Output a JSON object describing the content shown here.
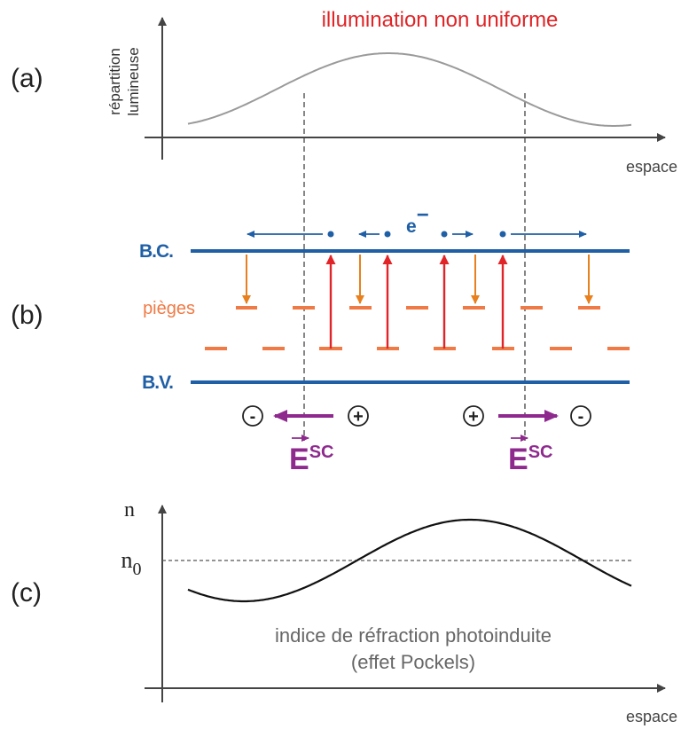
{
  "colors": {
    "axis": "#444444",
    "light_curve": "#9a9a9a",
    "band": "#1f5fa6",
    "trap": "#f07a45",
    "trap_arrow": "#e8801e",
    "excite_arrow": "#e02427",
    "field": "#8e2a8e",
    "title": "#e02427",
    "text": "#222222",
    "note": "#666666"
  },
  "panel_a": {
    "label": "(a)",
    "title": "illumination non uniforme",
    "ylabel_line1": "répartition",
    "ylabel_line2": "lumineuse",
    "xlabel": "espace"
  },
  "panel_b": {
    "label": "(b)",
    "conduction_band": "B.C.",
    "valence_band": "B.V.",
    "traps": "pièges",
    "electron": "e",
    "electron_charge": "−",
    "minus": "-",
    "plus": "+",
    "field_symbol": "E",
    "field_superscript": "SC"
  },
  "panel_c": {
    "label": "(c)",
    "ylabel": "n",
    "n0_base": "n",
    "n0_sub": "0",
    "caption_line1": "indice de réfraction photoinduite",
    "caption_line2": "(effet Pockels)",
    "xlabel": "espace"
  }
}
